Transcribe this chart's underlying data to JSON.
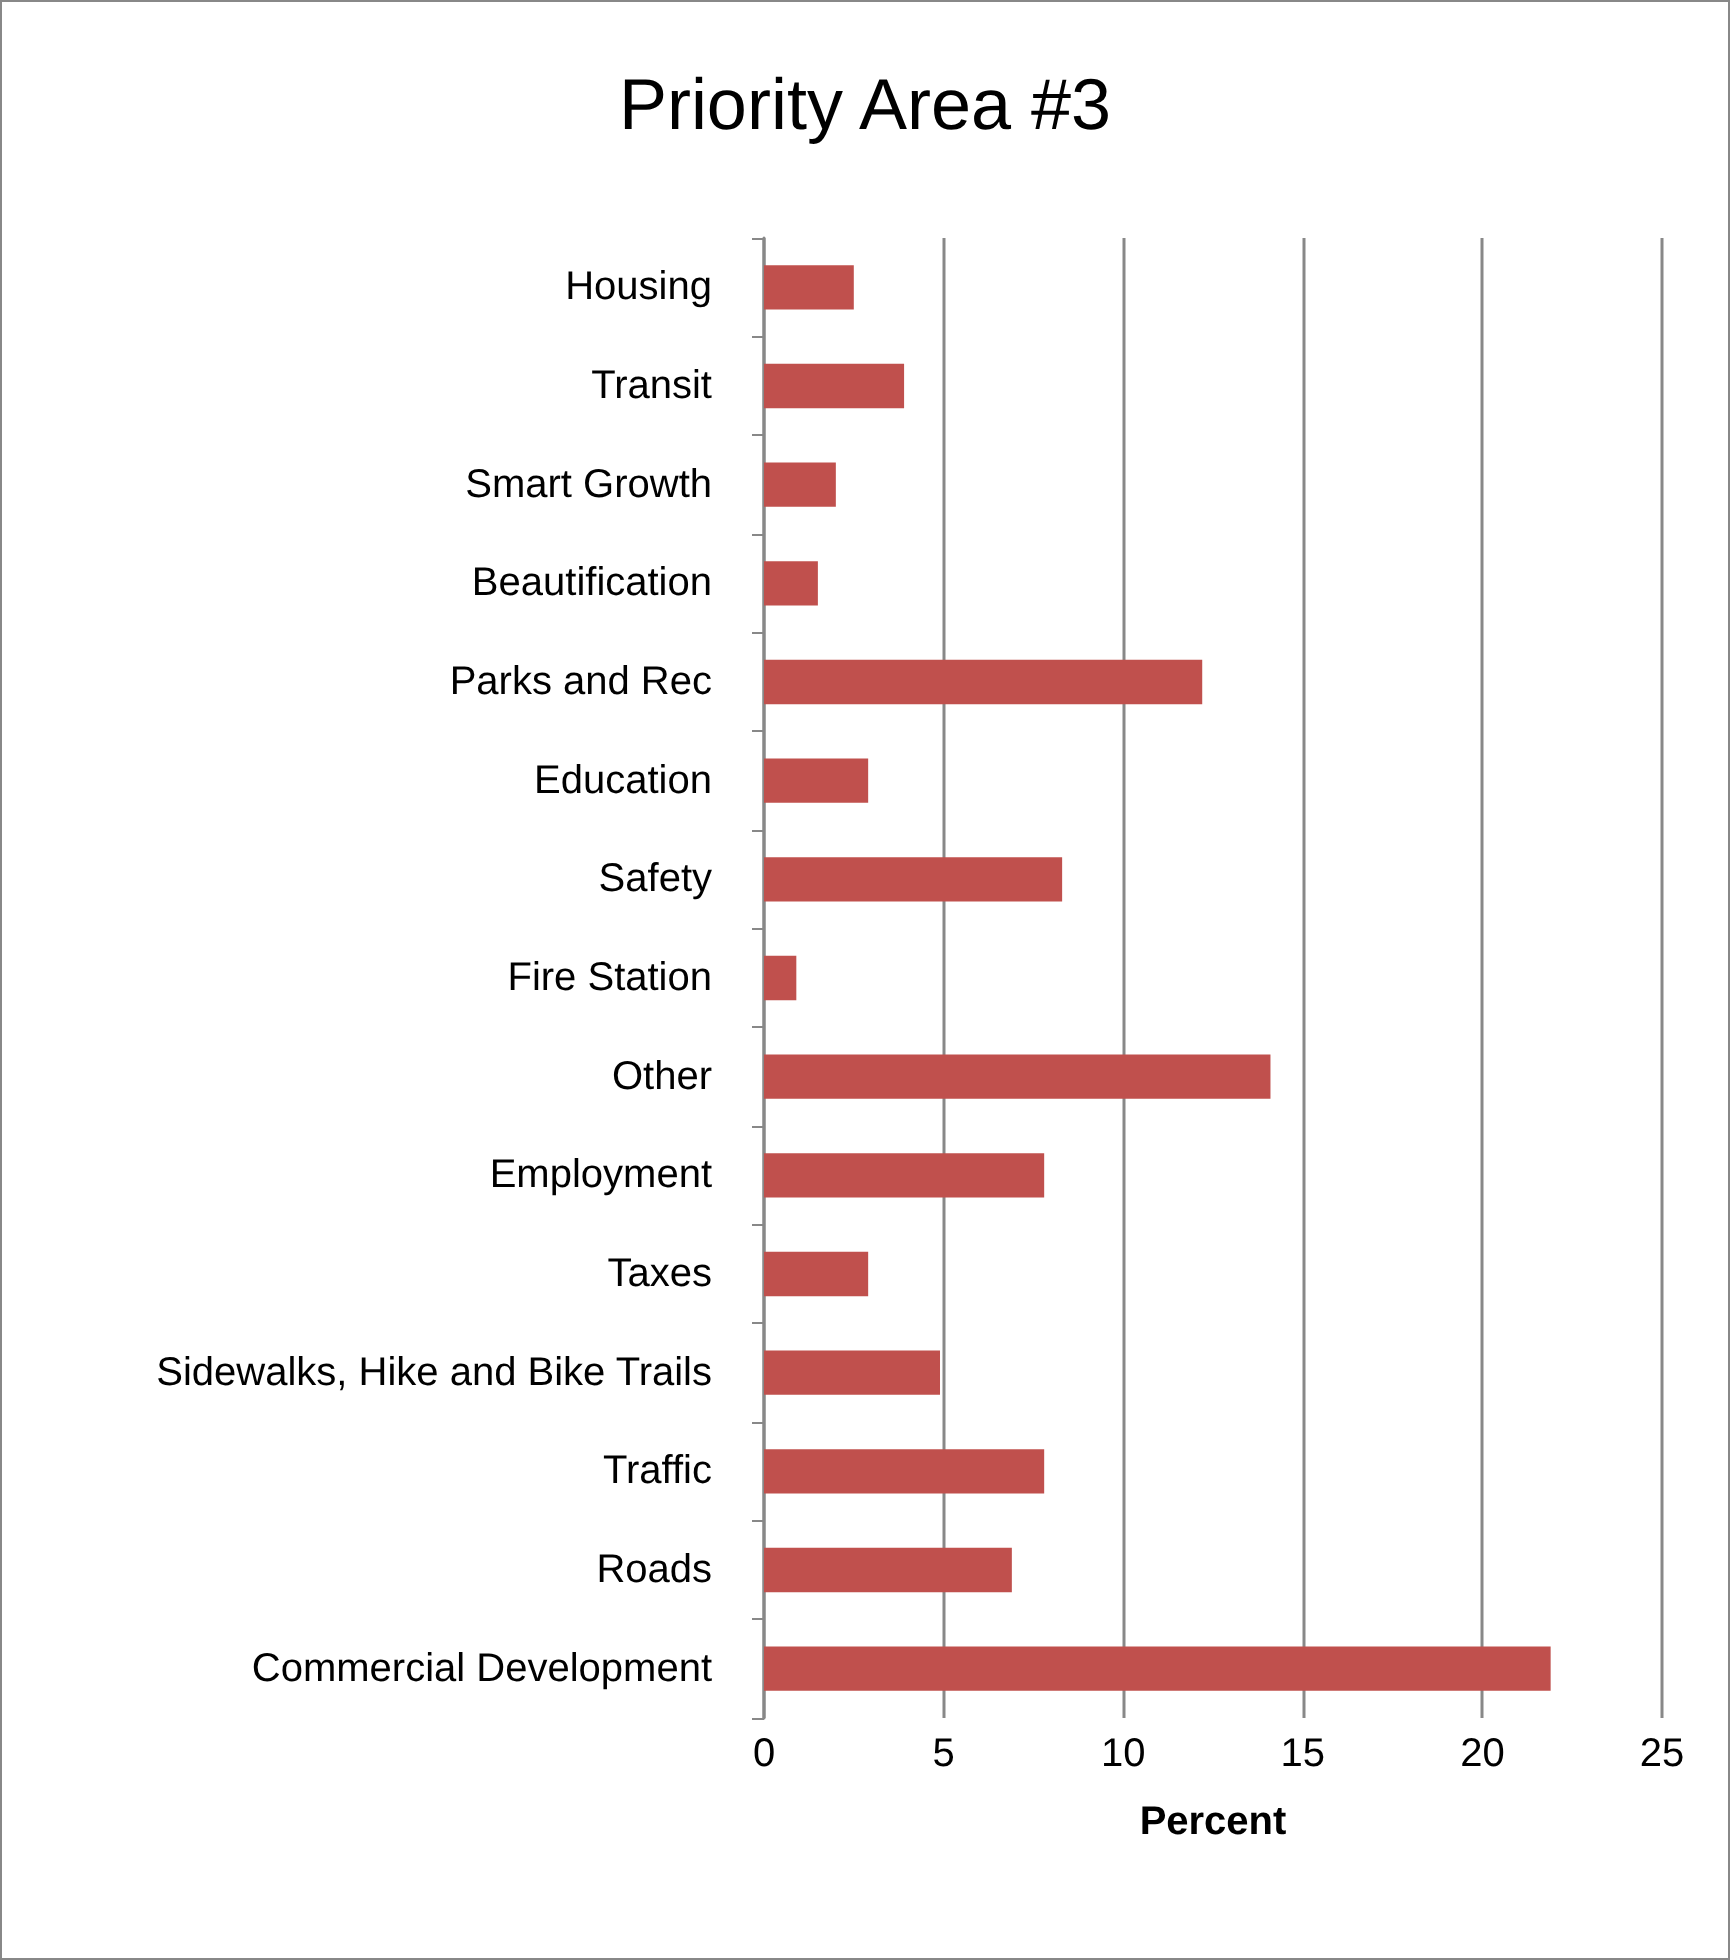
{
  "chart_data": {
    "type": "bar",
    "orientation": "horizontal",
    "title": "Priority Area #3",
    "xlabel": "Percent",
    "categories": [
      "Housing",
      "Transit",
      "Smart Growth",
      "Beautification",
      "Parks and Rec",
      "Education",
      "Safety",
      "Fire Station",
      "Other",
      "Employment",
      "Taxes",
      "Sidewalks, Hike and Bike Trails",
      "Traffic",
      "Roads",
      "Commercial Development"
    ],
    "values": [
      2.5,
      3.9,
      2.0,
      1.5,
      12.2,
      2.9,
      8.3,
      0.9,
      14.1,
      7.8,
      2.9,
      4.9,
      7.8,
      6.9,
      21.9
    ],
    "color": "#c0504d",
    "xlim": [
      0,
      25
    ],
    "xticks": [
      0,
      5,
      10,
      15,
      20,
      25
    ],
    "grid": "x"
  }
}
